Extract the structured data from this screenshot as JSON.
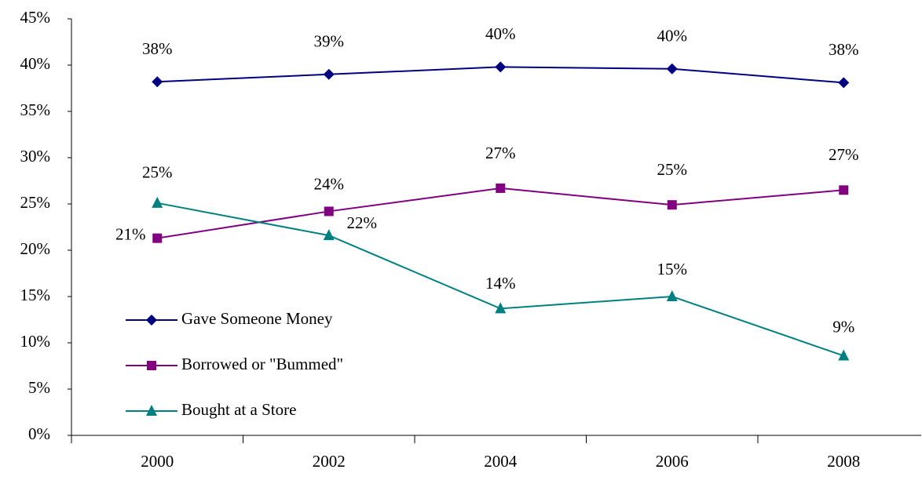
{
  "chart_data": {
    "type": "line",
    "categories": [
      "2000",
      "2002",
      "2004",
      "2006",
      "2008"
    ],
    "series": [
      {
        "name": "Gave Someone Money",
        "color": "#000080",
        "marker": "diamond",
        "values": [
          38.2,
          39.0,
          39.8,
          39.6,
          38.1
        ],
        "value_labels": [
          "38%",
          "39%",
          "40%",
          "40%",
          "38%"
        ]
      },
      {
        "name": "Borrowed or \"Bummed\"",
        "color": "#800080",
        "marker": "square",
        "values": [
          21.3,
          24.2,
          26.7,
          24.9,
          26.5
        ],
        "value_labels": [
          "21%",
          "24%",
          "27%",
          "25%",
          "27%"
        ]
      },
      {
        "name": "Bought at a Store",
        "color": "#008080",
        "marker": "triangle",
        "values": [
          25.1,
          21.6,
          13.7,
          15.0,
          8.6
        ],
        "value_labels": [
          "25%",
          "22%",
          "14%",
          "15%",
          "9%"
        ]
      }
    ],
    "ylim": [
      0,
      45
    ],
    "yticks": [
      {
        "value": 0,
        "label": "0%"
      },
      {
        "value": 5,
        "label": "5%"
      },
      {
        "value": 10,
        "label": "10%"
      },
      {
        "value": 15,
        "label": "15%"
      },
      {
        "value": 20,
        "label": "20%"
      },
      {
        "value": 25,
        "label": "25%"
      },
      {
        "value": 30,
        "label": "30%"
      },
      {
        "value": 35,
        "label": "35%"
      },
      {
        "value": 40,
        "label": "40%"
      },
      {
        "value": 45,
        "label": "45%"
      }
    ],
    "grid": false,
    "legend": "left"
  }
}
